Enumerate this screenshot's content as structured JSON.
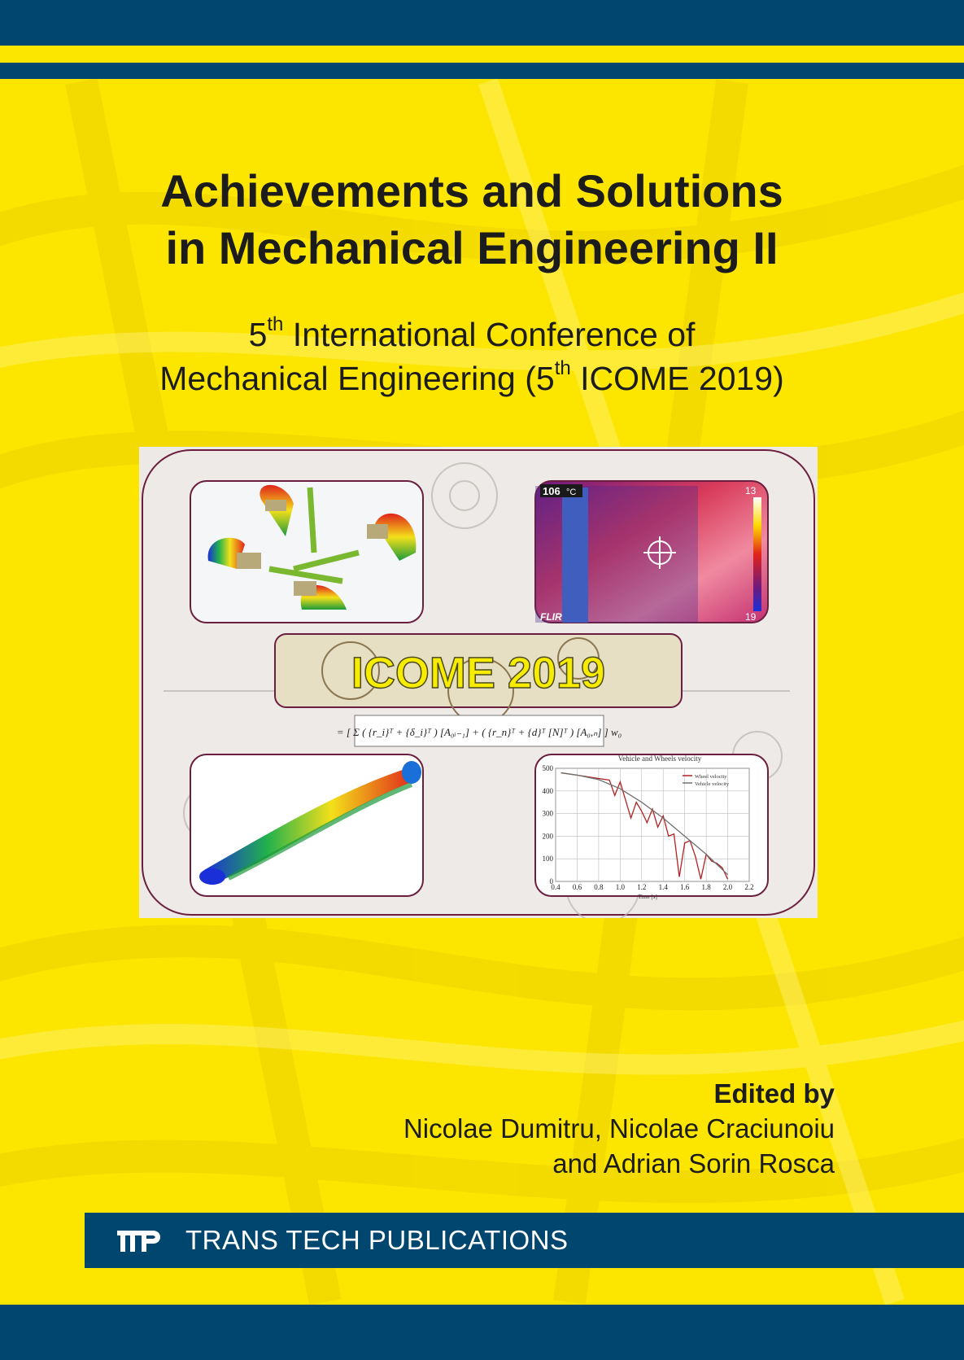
{
  "title": {
    "line1": "Achievements and Solutions",
    "line2": "in Mechanical Engineering II"
  },
  "subtitle": {
    "line1_num": "5",
    "line1_sup": "th",
    "line1_rest": " International Conference of",
    "line2_pre": "Mechanical Engineering (5",
    "line2_sup": "th",
    "line2_rest": " ICOME 2019)"
  },
  "figure": {
    "icome_text": "ICOME 2019",
    "thermal_max": "106",
    "thermal_unit": "°C",
    "thermal_right_top": "13",
    "thermal_right_bottom": "19",
    "thermal_brand": "FLIR",
    "chart_title": "Vehicle and Wheels velocity",
    "chart_xlabel": "Time [s]",
    "legend_wheel": "Wheel velocity",
    "legend_vehicle": "Vehicle velocity"
  },
  "chart_data": {
    "type": "line",
    "title": "Vehicle and Wheels velocity",
    "xlabel": "Time [s]",
    "ylabel": "",
    "xlim": [
      0.4,
      2.2
    ],
    "ylim": [
      0,
      500
    ],
    "x_ticks": [
      "0.4",
      "0.6",
      "0.8",
      "1.0",
      "1.2",
      "1.4",
      "1.6",
      "1.8",
      "2.0",
      "2.2"
    ],
    "y_ticks": [
      "0",
      "100",
      "200",
      "300",
      "400",
      "500"
    ],
    "grid": true,
    "legend": "top-right",
    "series": [
      {
        "name": "Wheel velocity",
        "color": "#b22222",
        "x": [
          0.45,
          0.6,
          0.8,
          0.9,
          0.95,
          1.0,
          1.05,
          1.1,
          1.15,
          1.2,
          1.25,
          1.3,
          1.35,
          1.4,
          1.45,
          1.5,
          1.55,
          1.6,
          1.65,
          1.7,
          1.75,
          1.8,
          1.85,
          1.9,
          1.95,
          2.0
        ],
        "values": [
          480,
          470,
          455,
          448,
          380,
          440,
          360,
          280,
          350,
          310,
          260,
          320,
          240,
          290,
          200,
          210,
          20,
          170,
          180,
          110,
          10,
          120,
          90,
          80,
          60,
          10
        ]
      },
      {
        "name": "Vehicle velocity",
        "color": "#707070",
        "x": [
          0.45,
          0.6,
          0.8,
          1.0,
          1.2,
          1.4,
          1.6,
          1.8,
          2.0
        ],
        "values": [
          480,
          470,
          450,
          410,
          350,
          280,
          200,
          120,
          30
        ]
      }
    ]
  },
  "editors": {
    "heading": "Edited by",
    "line1": "Nicolae Dumitru, Nicolae Craciunoiu",
    "line2": "and Adrian Sorin Rosca"
  },
  "publisher": {
    "name": "TRANS TECH PUBLICATIONS"
  },
  "colors": {
    "background": "#fce600",
    "band": "#00466e",
    "text": "#1c1c1c"
  }
}
